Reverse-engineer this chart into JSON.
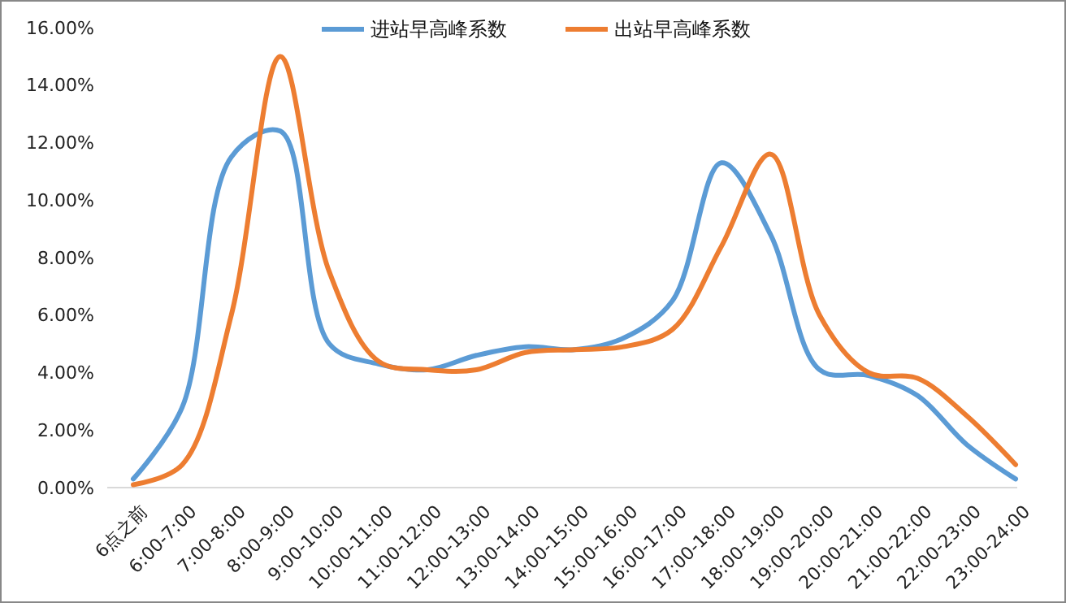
{
  "chart_data": {
    "type": "line",
    "categories": [
      "6点之前",
      "6:00-7:00",
      "7:00-8:00",
      "8:00-9:00",
      "9:00-10:00",
      "10:00-11:00",
      "11:00-12:00",
      "12:00-13:00",
      "13:00-14:00",
      "14:00-15:00",
      "15:00-16:00",
      "16:00-17:00",
      "17:00-18:00",
      "18:00-19:00",
      "19:00-20:00",
      "20:00-21:00",
      "21:00-22:00",
      "22:00-23:00",
      "23:00-24:00"
    ],
    "series": [
      {
        "name": "进站早高峰系数",
        "color": "#5b9bd5",
        "values": [
          0.3,
          2.8,
          11.5,
          12.4,
          5.0,
          4.3,
          4.1,
          4.6,
          4.9,
          4.8,
          5.2,
          6.5,
          11.3,
          8.8,
          4.1,
          3.9,
          3.2,
          1.5,
          0.3
        ]
      },
      {
        "name": "出站早高峰系数",
        "color": "#ed7d31",
        "values": [
          0.1,
          0.8,
          6.0,
          15.0,
          7.5,
          4.4,
          4.1,
          4.1,
          4.7,
          4.8,
          4.9,
          5.5,
          8.4,
          11.6,
          6.0,
          4.0,
          3.8,
          2.5,
          0.8
        ]
      }
    ],
    "ylim": [
      0,
      16
    ],
    "yticks": [
      {
        "value": 0,
        "label": "0.00%"
      },
      {
        "value": 2,
        "label": "2.00%"
      },
      {
        "value": 4,
        "label": "4.00%"
      },
      {
        "value": 6,
        "label": "6.00%"
      },
      {
        "value": 8,
        "label": "8.00%"
      },
      {
        "value": 10,
        "label": "10.00%"
      },
      {
        "value": 12,
        "label": "12.00%"
      },
      {
        "value": 14,
        "label": "14.00%"
      },
      {
        "value": 16,
        "label": "16.00%"
      }
    ],
    "grid": false,
    "legend": "top",
    "marker": "none",
    "line_style": "solid"
  }
}
